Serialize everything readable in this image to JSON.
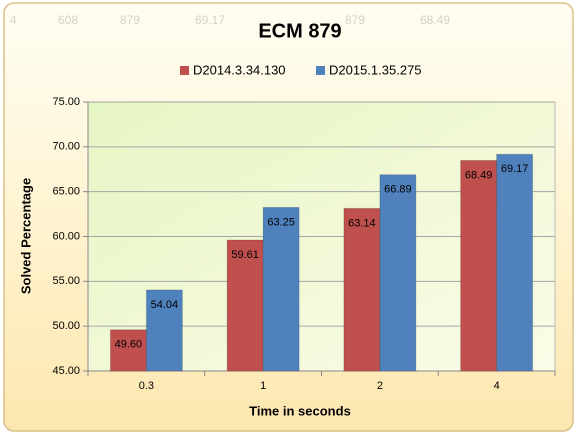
{
  "spreadsheet": {
    "row": [
      "4",
      "608",
      "879",
      "69.17",
      "879",
      "68.49"
    ]
  },
  "chart_data": {
    "type": "bar",
    "title": "ECM 879",
    "x_label": "Time in seconds",
    "y_label": "Solved Percentage",
    "categories": [
      "0.3",
      "1",
      "2",
      "4"
    ],
    "series": [
      {
        "name": "D2014.3.34.130",
        "color": "#c0504d",
        "values": [
          49.6,
          59.61,
          63.14,
          68.49
        ],
        "value_labels": [
          "49.60",
          "59.61",
          "63.14",
          "68.49"
        ]
      },
      {
        "name": "D2015.1.35.275",
        "color": "#4f81bd",
        "values": [
          54.04,
          63.25,
          66.89,
          69.17
        ],
        "value_labels": [
          "54.04",
          "63.25",
          "66.89",
          "69.17"
        ]
      }
    ],
    "ylim": [
      45,
      75
    ],
    "yticks": [
      {
        "value": 45,
        "label": "45.00"
      },
      {
        "value": 50,
        "label": "50.00"
      },
      {
        "value": 55,
        "label": "55.00"
      },
      {
        "value": 60,
        "label": "60.00"
      },
      {
        "value": 65,
        "label": "65.00"
      },
      {
        "value": 70,
        "label": "70.00"
      },
      {
        "value": 75,
        "label": "75.00"
      }
    ],
    "grid": true,
    "legend": "top"
  }
}
